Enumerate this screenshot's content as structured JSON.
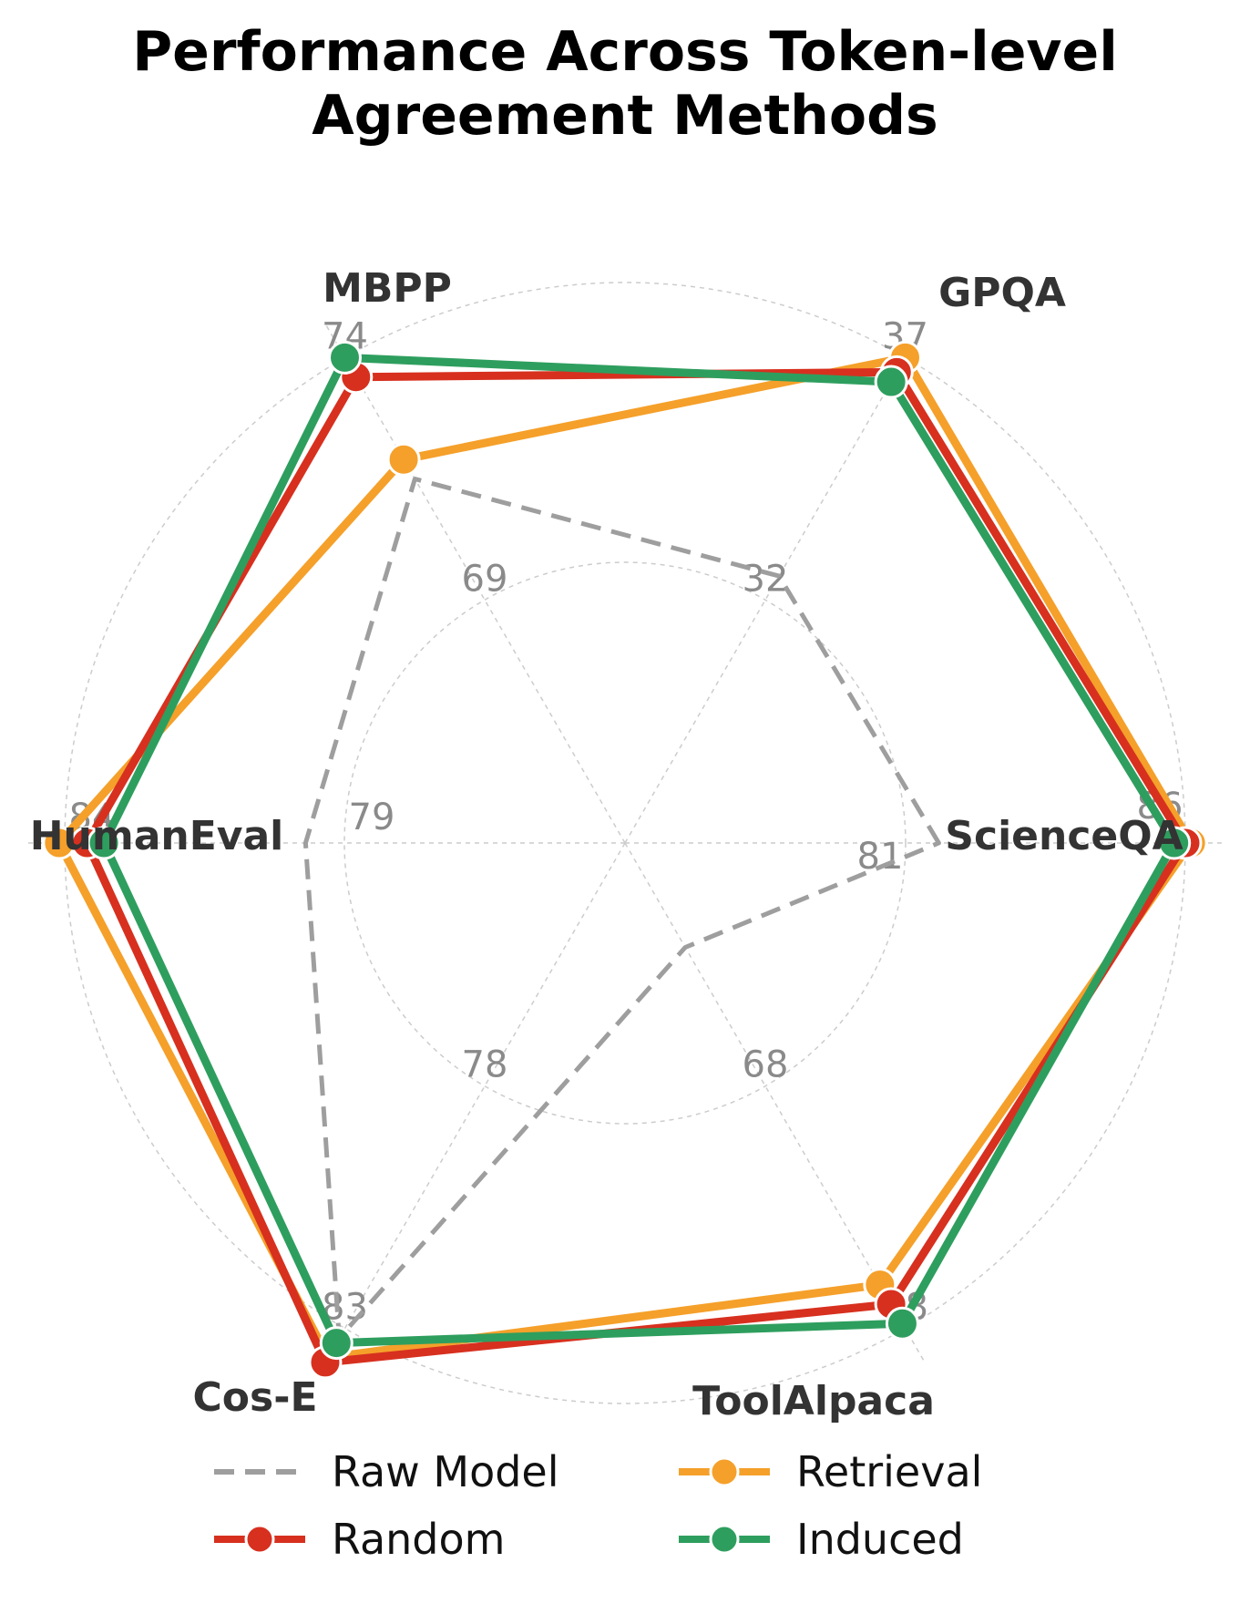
{
  "title_lines": [
    "Performance Across Token-level",
    "Agreement Methods"
  ],
  "colors": {
    "raw": "#9e9e9e",
    "random": "#d7301f",
    "retrieval": "#f5a02a",
    "induced": "#2e9e5e",
    "grid": "#cccccc"
  },
  "legend": {
    "raw": "Raw Model",
    "retrieval": "Retrieval",
    "random": "Random",
    "induced": "Induced"
  },
  "chart_data": {
    "type": "radar",
    "title": "Performance Across Token-level Agreement Methods",
    "axes": [
      "ScienceQA",
      "GPQA",
      "MBPP",
      "HumanEval",
      "Cos-E",
      "ToolAlpaca"
    ],
    "tick_labels": {
      "ScienceQA": [
        "81",
        "86"
      ],
      "GPQA": [
        "32",
        "37"
      ],
      "MBPP": [
        "69",
        "74"
      ],
      "HumanEval": [
        "79",
        "84"
      ],
      "Cos-E": [
        "78",
        "83"
      ],
      "ToolAlpaca": [
        "68",
        "78"
      ]
    },
    "axis_ranges": {
      "ScienceQA": [
        76,
        86
      ],
      "GPQA": [
        27,
        37
      ],
      "MBPP": [
        64,
        74
      ],
      "HumanEval": [
        74,
        84
      ],
      "Cos-E": [
        73,
        83
      ],
      "ToolAlpaca": [
        58,
        78
      ]
    },
    "series": [
      {
        "key": "raw",
        "name": "Raw Model",
        "style": "dashed",
        "values": [
          81.6,
          32.5,
          71.5,
          79.7,
          83.2,
          62.3
        ]
      },
      {
        "key": "random",
        "name": "Random",
        "style": "solid",
        "values": [
          86.0,
          36.7,
          73.6,
          83.6,
          83.7,
          77.0
        ]
      },
      {
        "key": "retrieval",
        "name": "Retrieval",
        "style": "solid",
        "values": [
          86.1,
          37.0,
          71.9,
          84.1,
          83.6,
          76.2
        ]
      },
      {
        "key": "induced",
        "name": "Induced",
        "style": "solid",
        "values": [
          85.8,
          36.5,
          74.0,
          83.3,
          83.3,
          77.8
        ]
      }
    ],
    "grid": true,
    "legend_position": "bottom"
  }
}
